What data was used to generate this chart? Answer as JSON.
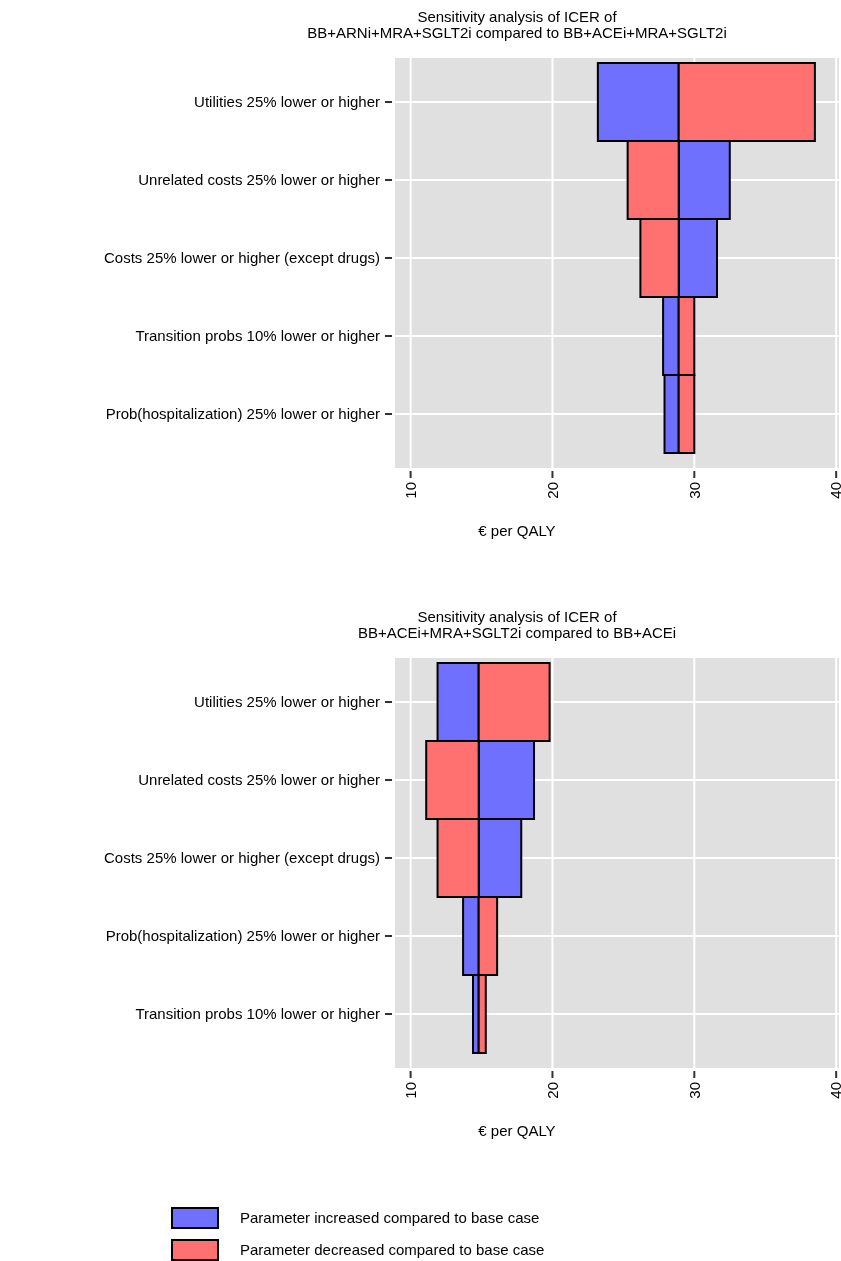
{
  "chart_data": [
    {
      "type": "bar",
      "orientation": "horizontal",
      "title": "Sensitivity analysis of ICER of\nBB+ARNi+MRA+SGLT2i compared to BB+ACEi+MRA+SGLT2i",
      "xlabel": "€ per QALY",
      "categories": [
        "Utilities 25% lower or higher",
        "Unrelated costs 25% lower or higher",
        "Costs 25% lower or higher (except drugs)",
        "Transition probs 10% lower or higher",
        "Prob(hospitalization) 25% lower or higher"
      ],
      "series": [
        {
          "color": "#7070ff",
          "base": [
            23.2,
            28.9,
            28.9,
            27.8,
            27.9
          ],
          "values": [
            5.7,
            3.6,
            2.7,
            1.1,
            1.0
          ]
        },
        {
          "color": "#ff7070",
          "base": [
            28.9,
            25.3,
            26.2,
            28.9,
            28.9
          ],
          "values": [
            9.6,
            3.6,
            2.7,
            1.1,
            1.1
          ]
        }
      ],
      "xlim": [
        8.9,
        40.2
      ],
      "xticks": [
        10,
        20,
        30,
        40
      ],
      "grid": true,
      "legend": false
    },
    {
      "type": "bar",
      "orientation": "horizontal",
      "title": "Sensitivity analysis of ICER of\nBB+ACEi+MRA+SGLT2i compared to BB+ACEi",
      "xlabel": "€ per QALY",
      "categories": [
        "Utilities 25% lower or higher",
        "Unrelated costs 25% lower or higher",
        "Costs 25% lower or higher (except drugs)",
        "Prob(hospitalization) 25% lower or higher",
        "Transition probs 10% lower or higher"
      ],
      "series": [
        {
          "name": "Parameter increased compared to base case",
          "color": "#7070ff",
          "base": [
            11.9,
            14.8,
            14.8,
            13.7,
            14.4
          ],
          "values": [
            2.9,
            3.9,
            3.0,
            1.1,
            0.4
          ]
        },
        {
          "name": "Parameter decreased compared to base case",
          "color": "#ff7070",
          "base": [
            14.8,
            11.1,
            11.9,
            14.8,
            14.8
          ],
          "values": [
            5.0,
            3.7,
            2.9,
            1.3,
            0.5
          ]
        }
      ],
      "xlim": [
        8.9,
        40.2
      ],
      "xticks": [
        10,
        20,
        30,
        40
      ],
      "grid": true,
      "legend": "bottom"
    }
  ]
}
